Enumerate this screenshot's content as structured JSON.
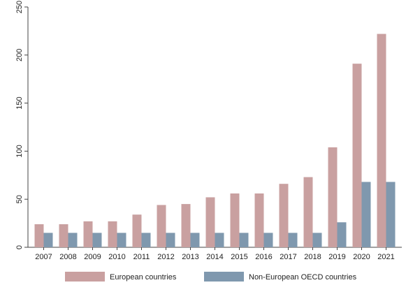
{
  "chart_data": {
    "type": "bar",
    "title": "",
    "xlabel": "",
    "ylabel": "",
    "categories": [
      "2007",
      "2008",
      "2009",
      "2010",
      "2011",
      "2012",
      "2013",
      "2014",
      "2015",
      "2016",
      "2017",
      "2018",
      "2019",
      "2020",
      "2021"
    ],
    "series": [
      {
        "name": "European countries",
        "color": "#c9a0a0",
        "values": [
          24,
          24,
          27,
          27,
          34,
          44,
          45,
          52,
          56,
          56,
          66,
          73,
          104,
          191,
          222
        ]
      },
      {
        "name": "Non-European OECD countries",
        "color": "#7f98ae",
        "values": [
          15,
          15,
          15,
          15,
          15,
          15,
          15,
          15,
          15,
          15,
          15,
          15,
          26,
          68,
          68
        ]
      }
    ],
    "ylim": [
      0,
      250
    ],
    "yticks": [
      0,
      50,
      100,
      150,
      200,
      250
    ],
    "grid": false,
    "legend_position": "bottom"
  }
}
